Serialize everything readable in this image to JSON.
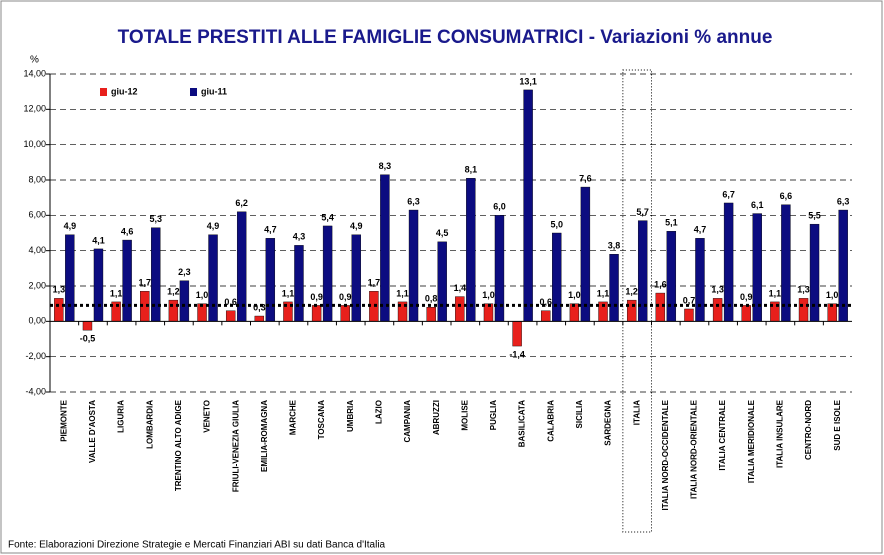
{
  "chart_data": {
    "type": "bar",
    "title": "TOTALE PRESTITI ALLE FAMIGLIE CONSUMATRICI - Variazioni % annue",
    "y_unit": "%",
    "source": "Fonte: Elaborazioni Direzione Strategie e Mercati Finanziari ABI su dati Banca d'Italia",
    "categories": [
      "PIEMONTE",
      "VALLE D'AOSTA",
      "LIGURIA",
      "LOMBARDIA",
      "TRENTINO ALTO ADIGE",
      "VENETO",
      "FRIULI-VENEZIA GIULIA",
      "EMILIA-ROMAGNA",
      "MARCHE",
      "TOSCANA",
      "UMBRIA",
      "LAZIO",
      "CAMPANIA",
      "ABRUZZI",
      "MOLISE",
      "PUGLIA",
      "BASILICATA",
      "CALABRIA",
      "SICILIA",
      "SARDEGNA",
      "ITALIA",
      "ITALIA NORD-OCCIDENTALE",
      "ITALIA NORD-ORIENTALE",
      "ITALIA CENTRALE",
      "ITALIA MERIDIONALE",
      "ITALIA INSULARE",
      "CENTRO-NORD",
      "SUD E ISOLE"
    ],
    "series": [
      {
        "name": "giu-12",
        "color": "#e8201c",
        "values": [
          1.3,
          -0.5,
          1.1,
          1.7,
          1.2,
          1.0,
          0.6,
          0.3,
          1.1,
          0.9,
          0.9,
          1.7,
          1.1,
          0.8,
          1.4,
          1.0,
          -1.4,
          0.6,
          1.0,
          1.1,
          1.2,
          1.6,
          0.7,
          1.3,
          0.9,
          1.1,
          1.3,
          1.0
        ],
        "value_labels": [
          "1,3",
          "-0,5",
          "1,1",
          "1,7",
          "1,2",
          "1,0",
          "0,6",
          "0,3",
          "1,1",
          "0,9",
          "0,9",
          "1,7",
          "1,1",
          "0,8",
          "1,4",
          "1,0",
          "-1,4",
          "0,6",
          "1,0",
          "1,1",
          "1,2",
          "1,6",
          "0,7",
          "1,3",
          "0,9",
          "1,1",
          "1,3",
          "1,0"
        ]
      },
      {
        "name": "giu-11",
        "color": "#0c0c80",
        "values": [
          4.9,
          4.1,
          4.6,
          5.3,
          2.3,
          4.9,
          6.2,
          4.7,
          4.3,
          5.4,
          4.9,
          8.3,
          6.3,
          4.5,
          8.1,
          6.0,
          13.1,
          5.0,
          7.6,
          3.8,
          5.7,
          5.1,
          4.7,
          6.7,
          6.1,
          6.6,
          5.5,
          6.3
        ],
        "value_labels": [
          "4,9",
          "4,1",
          "4,6",
          "5,3",
          "2,3",
          "4,9",
          "6,2",
          "4,7",
          "4,3",
          "5,4",
          "4,9",
          "8,3",
          "6,3",
          "4,5",
          "8,1",
          "6,0",
          "13,1",
          "5,0",
          "7,6",
          "3,8",
          "5,7",
          "5,1",
          "4,7",
          "6,7",
          "6,1",
          "6,6",
          "5,5",
          "6,3"
        ]
      }
    ],
    "reference_line": 0.9,
    "highlight_index": 20,
    "ylim": [
      -4,
      14
    ],
    "yticks": [
      {
        "value": -4,
        "label": "-4,00"
      },
      {
        "value": -2,
        "label": "-2,00"
      },
      {
        "value": 0,
        "label": "0,00"
      },
      {
        "value": 2,
        "label": "2,00"
      },
      {
        "value": 4,
        "label": "4,00"
      },
      {
        "value": 6,
        "label": "6,00"
      },
      {
        "value": 8,
        "label": "8,00"
      },
      {
        "value": 10,
        "label": "10,00"
      },
      {
        "value": 12,
        "label": "12,00"
      },
      {
        "value": 14,
        "label": "14,00"
      }
    ],
    "grid": true,
    "legend": "top-left"
  }
}
